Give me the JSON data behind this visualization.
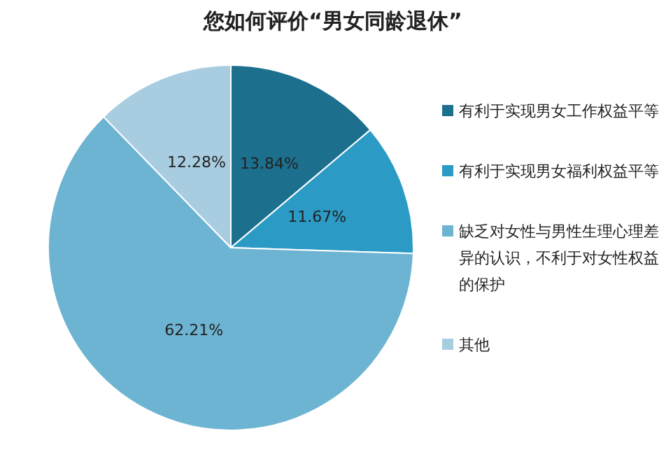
{
  "chart_data": {
    "type": "pie",
    "title": "您如何评价“男女同龄退休”",
    "categories": [
      "有利于实现男女工作权益平等",
      "有利于实现男女福利权益平等",
      "缺乏对女性与男性生理心理差异的认识，不利于对女性权益的保护",
      "其他"
    ],
    "values": [
      13.84,
      11.67,
      62.21,
      12.28
    ],
    "colors": [
      "#1d6f8e",
      "#2b9bc6",
      "#6db4d3",
      "#a8cde1"
    ],
    "value_labels": [
      "13.84%",
      "11.67%",
      "62.21%",
      "12.28%"
    ],
    "legend": "right"
  }
}
